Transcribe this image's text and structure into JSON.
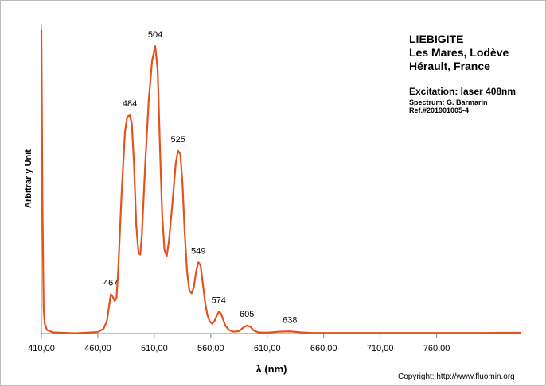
{
  "chart_data": {
    "type": "line",
    "title": "LIEBIGITE",
    "subtitle": [
      "Les Mares, Lodève",
      "Hérault, France"
    ],
    "excitation": "Excitation:  laser 408nm",
    "notes": [
      "Spectrum: G. Barmarin",
      "Ref.#201901005-4"
    ],
    "copyright": "Copyright: http://www.fluomin.org",
    "x_label": "λ (nm)",
    "y_label": "Arbitrar y Unit",
    "color": "#e4531f",
    "xlim": [
      410,
      835
    ],
    "ylim": [
      0,
      100
    ],
    "xticks": [
      {
        "value": 410,
        "label": "410,00"
      },
      {
        "value": 460,
        "label": "460,00"
      },
      {
        "value": 510,
        "label": "510,00"
      },
      {
        "value": 560,
        "label": "560,00"
      },
      {
        "value": 610,
        "label": "610,00"
      },
      {
        "value": 660,
        "label": "660,00"
      },
      {
        "value": 710,
        "label": "710,00"
      },
      {
        "value": 760,
        "label": "760,00"
      }
    ],
    "x": [
      410,
      411,
      412,
      413,
      415,
      420,
      440,
      460,
      465,
      468,
      470,
      471.5,
      473,
      475,
      476.5,
      478,
      481,
      484,
      486,
      488.3,
      490,
      492,
      494,
      496,
      497.5,
      499,
      502,
      505,
      508,
      510.8,
      513,
      515,
      517,
      519,
      521,
      523,
      526,
      529,
      531,
      533,
      535,
      537,
      539,
      541,
      543,
      545,
      547,
      549,
      551,
      553,
      555,
      557,
      559,
      561,
      563,
      565,
      567,
      569,
      571,
      573,
      576,
      580,
      585,
      589,
      592,
      595,
      598,
      602,
      610,
      620,
      630,
      640,
      650,
      700,
      750,
      800,
      835
    ],
    "values": [
      98,
      40,
      8,
      3,
      1.2,
      0.4,
      0.1,
      0.5,
      1.5,
      4,
      9,
      12.7,
      12,
      10.5,
      11.5,
      20,
      45,
      65,
      70,
      70.5,
      68,
      55,
      35,
      26,
      25.5,
      32,
      55,
      75,
      88,
      92.8,
      85,
      60,
      38,
      27,
      25,
      30,
      42,
      55,
      59,
      58,
      48,
      32,
      20,
      14,
      13,
      15,
      20,
      23,
      22,
      16,
      10,
      6,
      4,
      3.2,
      3.8,
      5.5,
      7,
      6.5,
      4.5,
      2.5,
      1.2,
      0.6,
      0.8,
      2,
      2.6,
      2.2,
      1,
      0.4,
      0.3,
      0.6,
      0.7,
      0.4,
      0.2,
      0.2,
      0.2,
      0.2,
      0.3
    ],
    "annotations": [
      {
        "text": "467",
        "x": 471.5,
        "y": 12.7
      },
      {
        "text": "484",
        "x": 488.3,
        "y": 70.5
      },
      {
        "text": "504",
        "x": 510.8,
        "y": 92.8
      },
      {
        "text": "525",
        "x": 531,
        "y": 59
      },
      {
        "text": "549",
        "x": 549,
        "y": 23
      },
      {
        "text": "574",
        "x": 567,
        "y": 7
      },
      {
        "text": "605",
        "x": 592,
        "y": 2.6
      },
      {
        "text": "638",
        "x": 630,
        "y": 0.7
      }
    ]
  }
}
